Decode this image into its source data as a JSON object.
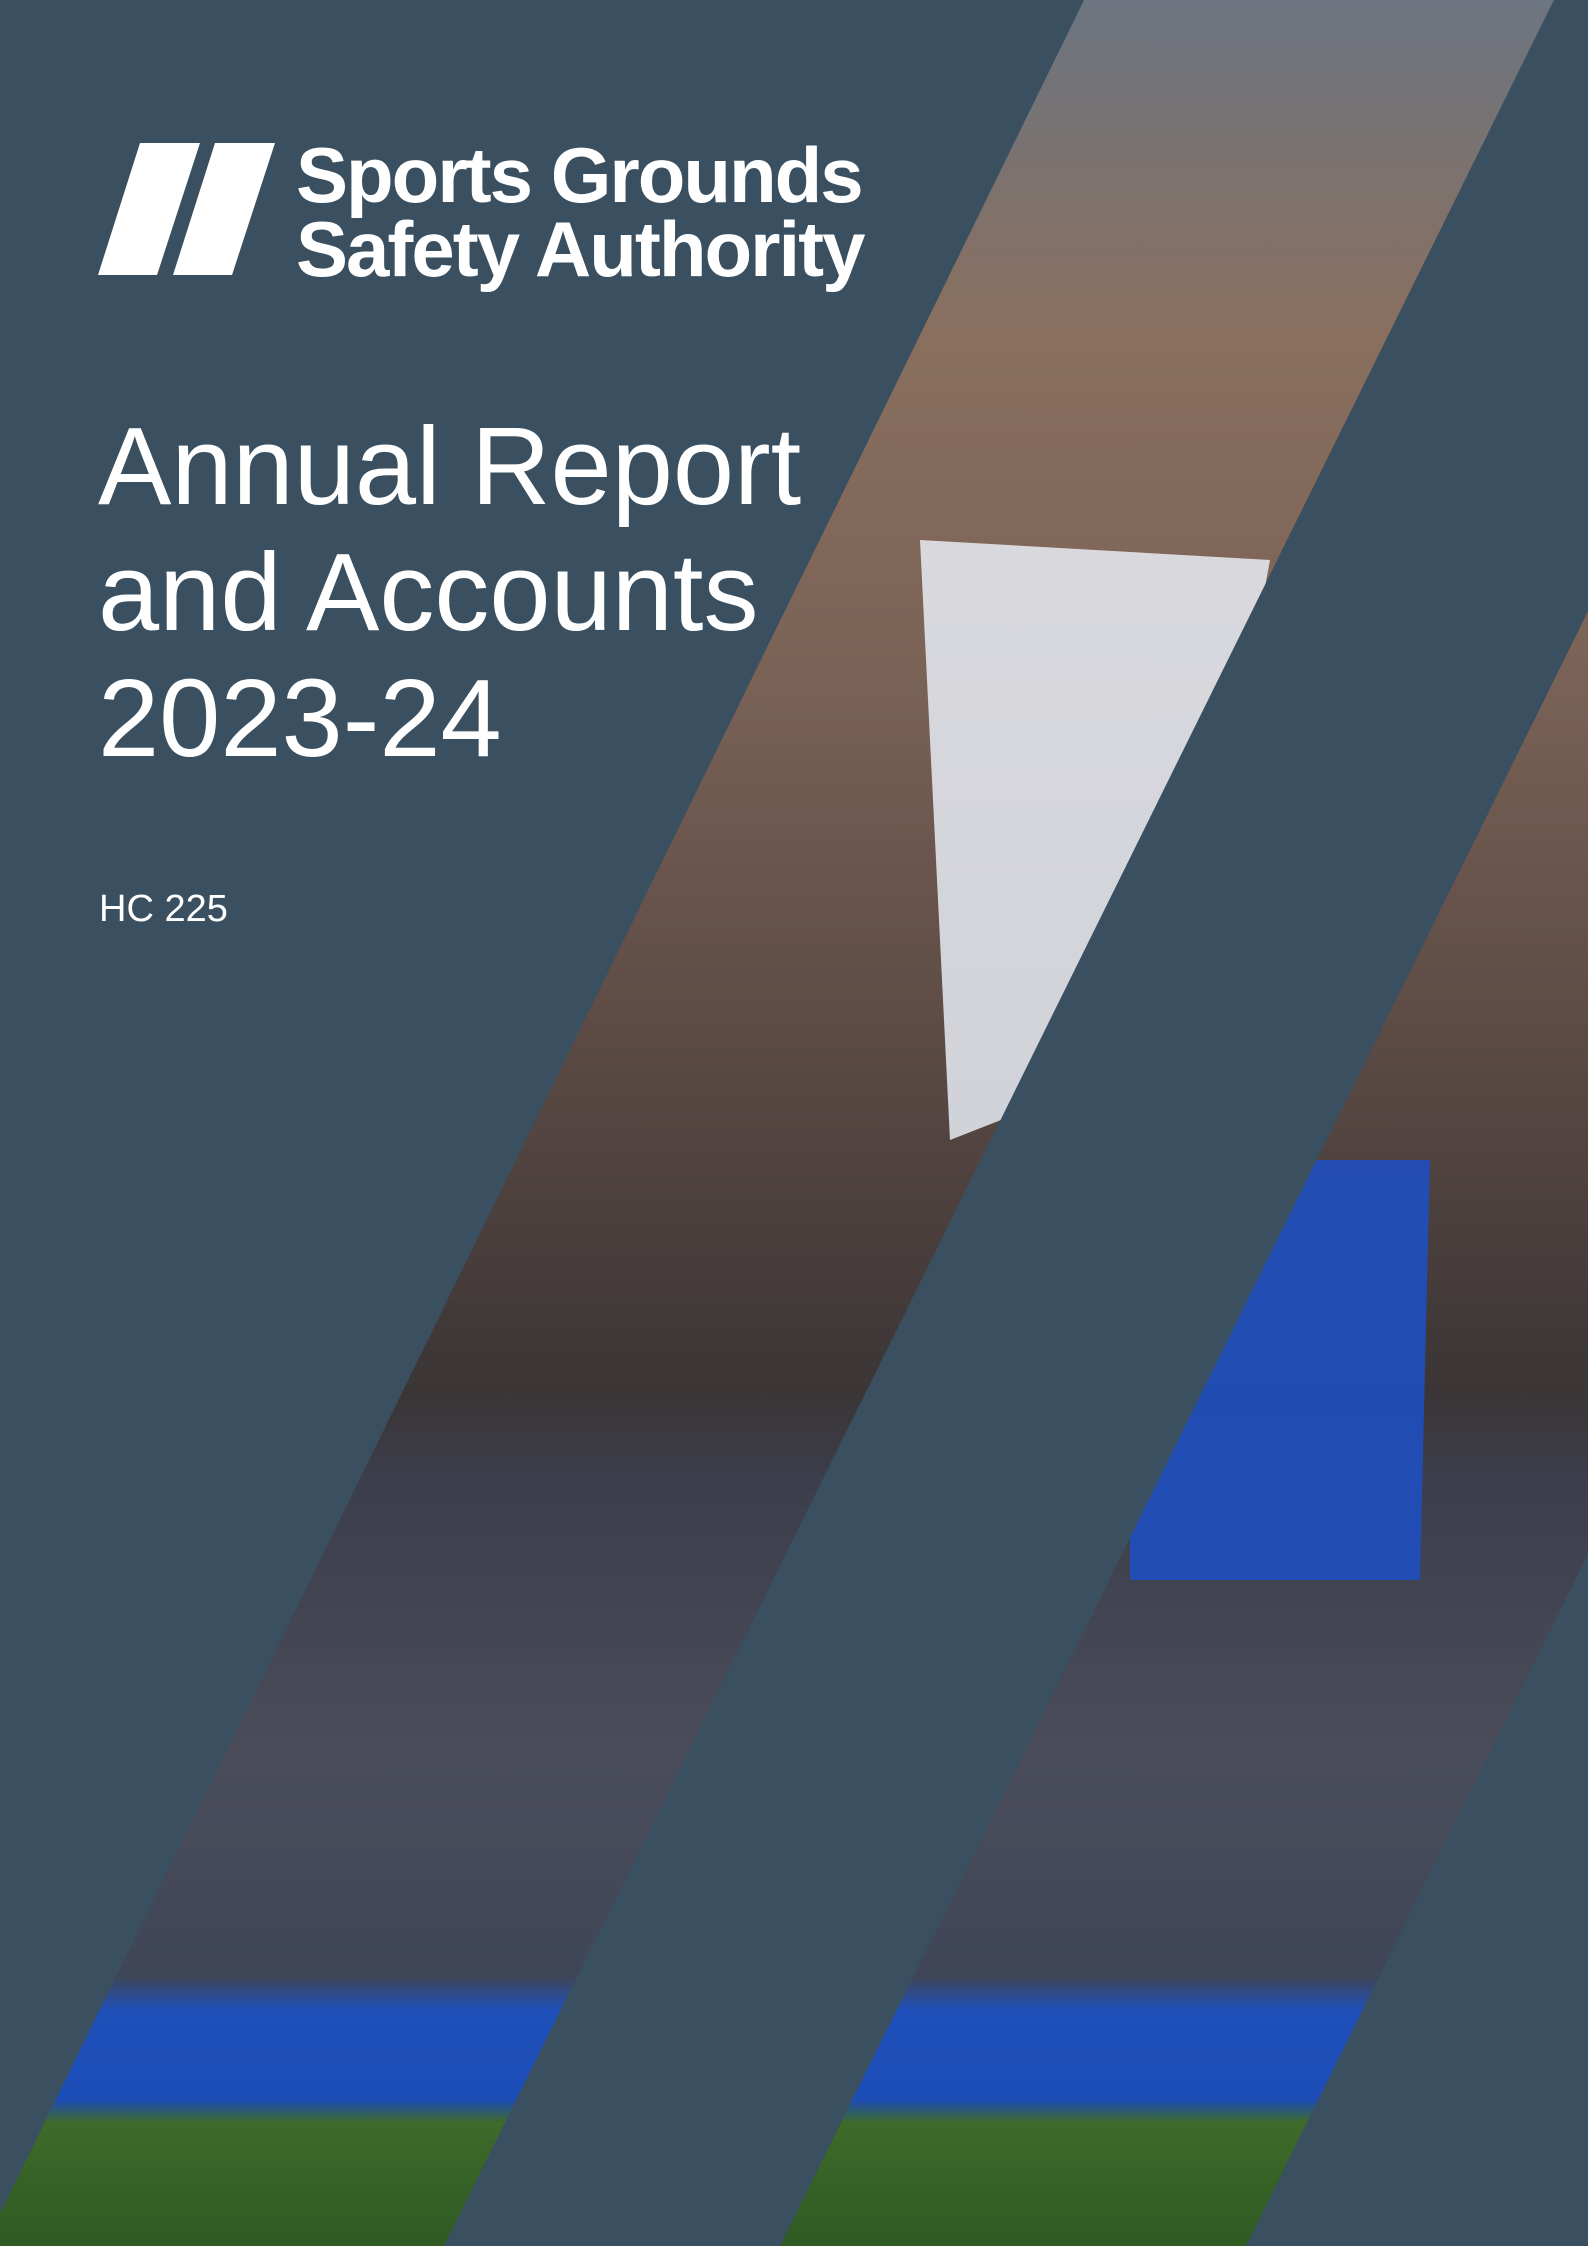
{
  "logo": {
    "line1": "Sports Grounds",
    "line2": "Safety Authority"
  },
  "title": {
    "lines": [
      "Annual Report",
      "and Accounts",
      "2023-24"
    ]
  },
  "reference": "HC 225"
}
